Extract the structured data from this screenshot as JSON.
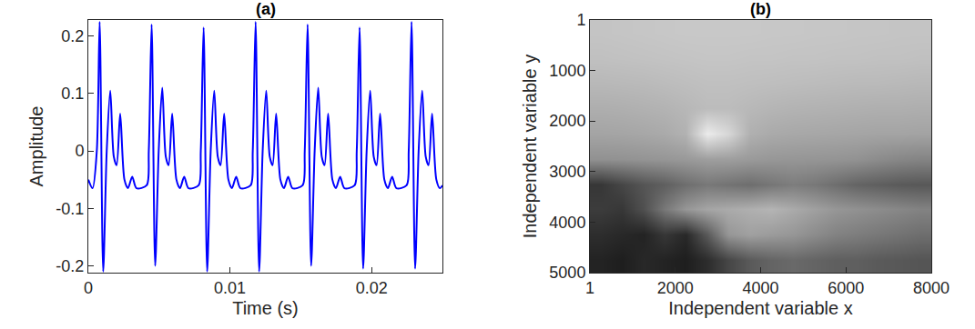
{
  "chart_data": [
    {
      "type": "line",
      "title": "(a)",
      "x_label": "Time (s)",
      "y_label": "Amplitude",
      "xlim": [
        0,
        0.025
      ],
      "xticks": [
        0,
        0.01,
        0.02
      ],
      "ylim": [
        -0.212,
        0.228
      ],
      "yticks": [
        -0.2,
        -0.1,
        0,
        0.1,
        0.2
      ],
      "grid": false,
      "color": "#0000ff",
      "x": [
        0,
        0.0003,
        0.0006,
        0.0008,
        0.00105,
        0.0013,
        0.00155,
        0.0018,
        0.002,
        0.00225,
        0.00255,
        0.0028,
        0.0031,
        0.0034,
        0.00412,
        0.00427,
        0.00447,
        0.00472,
        0.00497,
        0.00522,
        0.00547,
        0.00567,
        0.00592,
        0.00622,
        0.00647,
        0.00677,
        0.00707,
        0.00779,
        0.00794,
        0.00814,
        0.00839,
        0.00864,
        0.00889,
        0.00914,
        0.00934,
        0.00959,
        0.00989,
        0.01014,
        0.01044,
        0.01074,
        0.01146,
        0.01161,
        0.01181,
        0.01206,
        0.01231,
        0.01256,
        0.01281,
        0.01301,
        0.01326,
        0.01356,
        0.01381,
        0.01411,
        0.01441,
        0.01513,
        0.01528,
        0.01548,
        0.01573,
        0.01598,
        0.01623,
        0.01648,
        0.01668,
        0.01693,
        0.01723,
        0.01748,
        0.01778,
        0.01808,
        0.0188,
        0.01895,
        0.01915,
        0.0194,
        0.01965,
        0.0199,
        0.02015,
        0.02035,
        0.0206,
        0.0209,
        0.02115,
        0.02145,
        0.02175,
        0.02247,
        0.02262,
        0.02282,
        0.02307,
        0.02332,
        0.02357,
        0.02382,
        0.02402,
        0.02427,
        0.02457,
        0.02482,
        0.025
      ],
      "values": [
        -0.05,
        -0.065,
        0.0,
        0.225,
        -0.21,
        0.0,
        0.105,
        -0.01,
        -0.025,
        0.065,
        -0.05,
        -0.065,
        -0.045,
        -0.065,
        -0.06,
        0.0,
        0.22,
        -0.2,
        0.0,
        0.11,
        -0.01,
        -0.025,
        0.065,
        -0.05,
        -0.065,
        -0.045,
        -0.065,
        -0.06,
        0.0,
        0.215,
        -0.21,
        0.0,
        0.105,
        -0.01,
        -0.025,
        0.065,
        -0.05,
        -0.065,
        -0.045,
        -0.065,
        -0.06,
        0.0,
        0.225,
        -0.21,
        0.0,
        0.105,
        -0.01,
        -0.025,
        0.065,
        -0.05,
        -0.065,
        -0.045,
        -0.065,
        -0.06,
        0.0,
        0.22,
        -0.2,
        0.0,
        0.11,
        -0.01,
        -0.025,
        0.065,
        -0.05,
        -0.065,
        -0.045,
        -0.065,
        -0.06,
        0.0,
        0.215,
        -0.205,
        0.0,
        0.105,
        -0.01,
        -0.025,
        0.065,
        -0.05,
        -0.065,
        -0.045,
        -0.065,
        -0.06,
        0.0,
        0.225,
        -0.205,
        0.0,
        0.105,
        -0.01,
        -0.025,
        0.065,
        -0.05,
        -0.065,
        -0.06
      ]
    },
    {
      "type": "heatmap",
      "title": "(b)",
      "x_label": "Independent variable x",
      "y_label": "Independent variable y",
      "xlim": [
        1,
        8000
      ],
      "xticks": [
        1,
        2000,
        4000,
        6000,
        8000
      ],
      "ylim": [
        5000,
        1
      ],
      "yticks": [
        1,
        1000,
        2000,
        3000,
        4000,
        5000
      ],
      "zlim": [
        0,
        255
      ],
      "x": [
        250,
        750,
        1250,
        1750,
        2250,
        2750,
        3250,
        3750,
        4250,
        4750,
        5250,
        5750,
        6250,
        6750,
        7250,
        7750
      ],
      "y": [
        250,
        750,
        1250,
        1750,
        2250,
        2750,
        3250,
        3750,
        4250,
        4750
      ],
      "cells": [
        [
          196,
          197,
          198,
          199,
          200,
          200,
          200,
          200,
          199,
          199,
          198,
          198,
          197,
          197,
          196,
          196
        ],
        [
          192,
          193,
          194,
          195,
          196,
          197,
          197,
          196,
          196,
          195,
          195,
          194,
          194,
          193,
          193,
          192
        ],
        [
          184,
          185,
          186,
          188,
          190,
          192,
          192,
          191,
          190,
          189,
          188,
          187,
          186,
          186,
          185,
          184
        ],
        [
          174,
          175,
          177,
          179,
          183,
          188,
          188,
          184,
          181,
          179,
          178,
          177,
          176,
          175,
          175,
          174
        ],
        [
          164,
          165,
          167,
          170,
          178,
          235,
          215,
          176,
          170,
          168,
          167,
          166,
          165,
          164,
          164,
          163
        ],
        [
          145,
          146,
          148,
          150,
          153,
          158,
          158,
          154,
          151,
          150,
          149,
          148,
          146,
          140,
          135,
          132
        ],
        [
          55,
          70,
          85,
          95,
          110,
          120,
          115,
          110,
          118,
          125,
          120,
          110,
          100,
          95,
          90,
          88
        ],
        [
          60,
          55,
          80,
          120,
          150,
          165,
          170,
          175,
          180,
          170,
          160,
          150,
          145,
          140,
          135,
          130
        ],
        [
          45,
          40,
          35,
          55,
          40,
          90,
          150,
          160,
          155,
          150,
          140,
          130,
          125,
          120,
          115,
          110
        ],
        [
          35,
          30,
          40,
          35,
          30,
          45,
          70,
          90,
          100,
          105,
          100,
          95,
          95,
          90,
          88,
          85
        ]
      ]
    }
  ]
}
